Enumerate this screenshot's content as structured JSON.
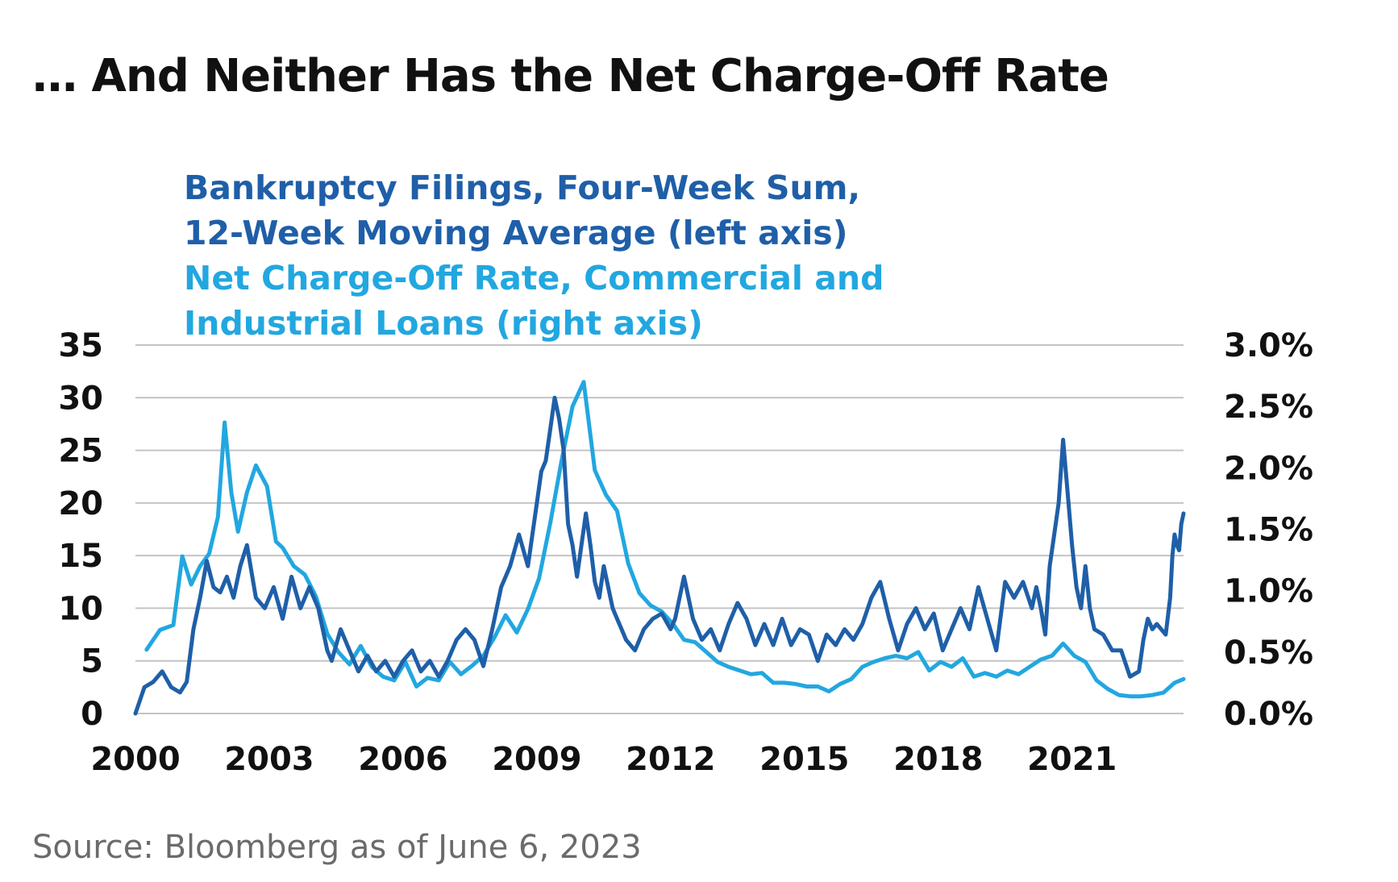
{
  "title": "… And Neither Has the Net Charge-Off Rate",
  "source": "Source: Bloomberg as of June 6, 2023",
  "chart_data": {
    "type": "line",
    "legend_placement": "top-left",
    "grid": true,
    "legend": [
      {
        "lines": [
          "Bankruptcy Filings, Four-Week Sum,",
          "12-Week Moving Average (left axis)"
        ],
        "color": "#1f5fa8"
      },
      {
        "lines": [
          "Net Charge-Off Rate, Commercial and",
          "Industrial Loans (right axis)"
        ],
        "color": "#22a7e0"
      }
    ],
    "x_ticks": [
      "2000",
      "2003",
      "2006",
      "2009",
      "2012",
      "2015",
      "2018",
      "2021"
    ],
    "xlim": [
      2000,
      2023.5
    ],
    "left_axis": {
      "ticks": [
        "35",
        "30",
        "25",
        "20",
        "15",
        "10",
        "5",
        "0"
      ],
      "ylim": [
        0,
        35
      ]
    },
    "right_axis": {
      "ticks": [
        "3.0%",
        "2.5%",
        "2.0%",
        "1.5%",
        "1.0%",
        "0.5%",
        "0.0%"
      ],
      "ylim": [
        0,
        3.0
      ]
    },
    "series": [
      {
        "name": "Bankruptcy Filings, Four-Week Sum, 12-Week Moving Average",
        "axis": "left",
        "color": "#1f5fa8",
        "x": [
          2000.0,
          2000.2,
          2000.4,
          2000.6,
          2000.8,
          2001.0,
          2001.15,
          2001.3,
          2001.45,
          2001.6,
          2001.75,
          2001.9,
          2002.05,
          2002.2,
          2002.35,
          2002.5,
          2002.7,
          2002.9,
          2003.1,
          2003.3,
          2003.5,
          2003.7,
          2003.9,
          2004.1,
          2004.3,
          2004.4,
          2004.6,
          2004.8,
          2005.0,
          2005.2,
          2005.4,
          2005.6,
          2005.8,
          2006.0,
          2006.2,
          2006.4,
          2006.6,
          2006.8,
          2007.0,
          2007.2,
          2007.4,
          2007.6,
          2007.8,
          2008.0,
          2008.2,
          2008.4,
          2008.6,
          2008.8,
          2009.0,
          2009.1,
          2009.2,
          2009.3,
          2009.4,
          2009.5,
          2009.6,
          2009.7,
          2009.8,
          2009.9,
          2010.0,
          2010.1,
          2010.2,
          2010.3,
          2010.4,
          2010.5,
          2010.6,
          2010.7,
          2010.8,
          2010.9,
          2011.0,
          2011.2,
          2011.4,
          2011.6,
          2011.8,
          2012.0,
          2012.1,
          2012.3,
          2012.5,
          2012.7,
          2012.9,
          2013.1,
          2013.3,
          2013.5,
          2013.7,
          2013.9,
          2014.1,
          2014.3,
          2014.5,
          2014.7,
          2014.9,
          2015.1,
          2015.3,
          2015.5,
          2015.7,
          2015.9,
          2016.1,
          2016.3,
          2016.5,
          2016.7,
          2016.9,
          2017.1,
          2017.3,
          2017.5,
          2017.7,
          2017.9,
          2018.1,
          2018.3,
          2018.5,
          2018.7,
          2018.9,
          2019.1,
          2019.3,
          2019.5,
          2019.7,
          2019.9,
          2020.1,
          2020.2,
          2020.3,
          2020.4,
          2020.5,
          2020.6,
          2020.7,
          2020.8,
          2020.9,
          2021.0,
          2021.1,
          2021.2,
          2021.3,
          2021.4,
          2021.5,
          2021.7,
          2021.9,
          2022.1,
          2022.3,
          2022.5,
          2022.6,
          2022.7,
          2022.8,
          2022.9,
          2023.0,
          2023.1,
          2023.2,
          2023.25,
          2023.3,
          2023.35,
          2023.4,
          2023.45,
          2023.5
        ],
        "y": [
          0.0,
          2.5,
          3.0,
          4.0,
          2.5,
          2.0,
          3.0,
          8.0,
          11.0,
          14.5,
          12.0,
          11.5,
          13.0,
          11.0,
          14.0,
          16.0,
          11.0,
          10.0,
          12.0,
          9.0,
          13.0,
          10.0,
          12.0,
          10.0,
          6.0,
          5.0,
          8.0,
          6.0,
          4.0,
          5.5,
          4.0,
          5.0,
          3.5,
          5.0,
          6.0,
          4.0,
          5.0,
          3.5,
          5.0,
          7.0,
          8.0,
          7.0,
          4.5,
          8.0,
          12.0,
          14.0,
          17.0,
          14.0,
          20.0,
          23.0,
          24.0,
          27.0,
          30.0,
          28.0,
          25.0,
          18.0,
          16.0,
          13.0,
          16.0,
          19.0,
          16.0,
          12.5,
          11.0,
          14.0,
          12.0,
          10.0,
          9.0,
          8.0,
          7.0,
          6.0,
          8.0,
          9.0,
          9.5,
          8.0,
          9.0,
          13.0,
          9.0,
          7.0,
          8.0,
          6.0,
          8.5,
          10.5,
          9.0,
          6.5,
          8.5,
          6.5,
          9.0,
          6.5,
          8.0,
          7.5,
          5.0,
          7.5,
          6.5,
          8.0,
          7.0,
          8.5,
          11.0,
          12.5,
          9.0,
          6.0,
          8.5,
          10.0,
          8.0,
          9.5,
          6.0,
          8.0,
          10.0,
          8.0,
          12.0,
          9.0,
          6.0,
          12.5,
          11.0,
          12.5,
          10.0,
          12.0,
          10.0,
          7.5,
          14.0,
          17.0,
          20.0,
          26.0,
          21.0,
          16.0,
          12.0,
          10.0,
          14.0,
          10.0,
          8.0,
          7.5,
          6.0,
          6.0,
          3.5,
          4.0,
          7.0,
          9.0,
          8.0,
          8.5,
          8.0,
          7.5,
          11.0,
          15.0,
          17.0,
          16.0,
          15.5,
          18.0,
          19.0
        ]
      },
      {
        "name": "Net Charge-Off Rate, Commercial and Industrial Loans",
        "axis": "right",
        "color": "#22a7e0",
        "x": [
          2000.25,
          2000.55,
          2000.85,
          2001.05,
          2001.25,
          2001.45,
          2001.65,
          2001.85,
          2002.0,
          2002.15,
          2002.3,
          2002.5,
          2002.7,
          2002.95,
          2003.15,
          2003.3,
          2003.55,
          2003.8,
          2004.05,
          2004.3,
          2004.55,
          2004.8,
          2005.05,
          2005.3,
          2005.55,
          2005.8,
          2006.05,
          2006.3,
          2006.55,
          2006.8,
          2007.05,
          2007.3,
          2007.55,
          2007.8,
          2008.05,
          2008.3,
          2008.55,
          2008.8,
          2009.05,
          2009.3,
          2009.55,
          2009.8,
          2010.05,
          2010.3,
          2010.55,
          2010.8,
          2011.05,
          2011.3,
          2011.55,
          2011.8,
          2012.05,
          2012.3,
          2012.55,
          2012.8,
          2013.05,
          2013.3,
          2013.55,
          2013.8,
          2014.05,
          2014.3,
          2014.55,
          2014.8,
          2015.05,
          2015.3,
          2015.55,
          2015.8,
          2016.05,
          2016.3,
          2016.55,
          2016.8,
          2017.05,
          2017.3,
          2017.55,
          2017.8,
          2018.05,
          2018.3,
          2018.55,
          2018.8,
          2019.05,
          2019.3,
          2019.55,
          2019.8,
          2020.05,
          2020.3,
          2020.55,
          2020.8,
          2021.05,
          2021.3,
          2021.55,
          2021.8,
          2022.05,
          2022.3,
          2022.55,
          2022.8,
          2023.05,
          2023.3,
          2023.5
        ],
        "y": [
          0.52,
          0.68,
          0.72,
          1.28,
          1.05,
          1.2,
          1.3,
          1.6,
          2.37,
          1.8,
          1.48,
          1.8,
          2.02,
          1.85,
          1.4,
          1.35,
          1.2,
          1.13,
          0.95,
          0.65,
          0.5,
          0.4,
          0.55,
          0.38,
          0.3,
          0.27,
          0.42,
          0.22,
          0.29,
          0.27,
          0.42,
          0.32,
          0.39,
          0.47,
          0.62,
          0.8,
          0.66,
          0.85,
          1.1,
          1.55,
          2.05,
          2.5,
          2.7,
          1.98,
          1.78,
          1.65,
          1.22,
          0.98,
          0.88,
          0.83,
          0.73,
          0.6,
          0.58,
          0.5,
          0.42,
          0.38,
          0.35,
          0.32,
          0.33,
          0.25,
          0.25,
          0.24,
          0.22,
          0.22,
          0.18,
          0.24,
          0.28,
          0.38,
          0.42,
          0.45,
          0.47,
          0.45,
          0.5,
          0.35,
          0.42,
          0.38,
          0.45,
          0.3,
          0.33,
          0.3,
          0.35,
          0.32,
          0.38,
          0.44,
          0.47,
          0.57,
          0.47,
          0.42,
          0.27,
          0.2,
          0.15,
          0.14,
          0.14,
          0.15,
          0.17,
          0.25,
          0.28
        ]
      }
    ]
  }
}
